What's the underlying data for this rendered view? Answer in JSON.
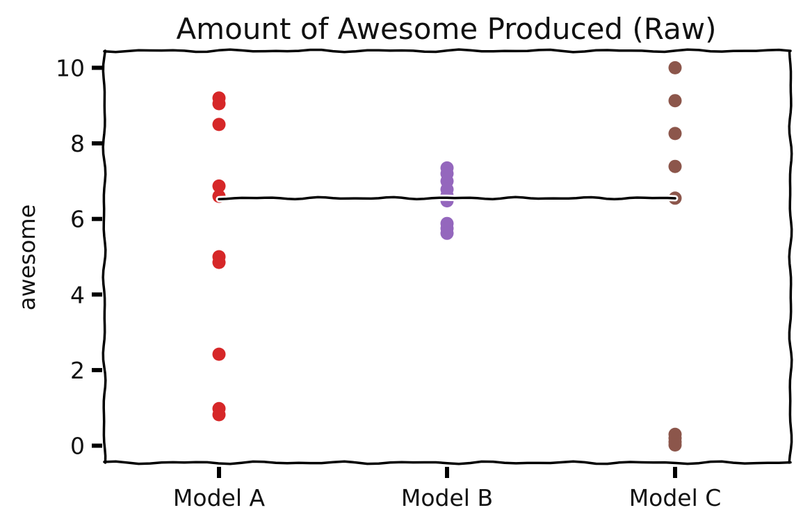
{
  "chart_data": {
    "type": "scatter",
    "title": "Amount of Awesome Produced (Raw)",
    "xlabel": "",
    "ylabel": "awesome",
    "categories": [
      "Model A",
      "Model B",
      "Model C"
    ],
    "ylim": [
      -0.45,
      10.45
    ],
    "yticks": [
      0,
      2,
      4,
      6,
      8,
      10
    ],
    "grid": false,
    "series": [
      {
        "category": "Model A",
        "color": "#d62728",
        "values": [
          9.2,
          9.05,
          8.5,
          6.87,
          6.6,
          5.0,
          4.85,
          2.42,
          0.98,
          0.82
        ]
      },
      {
        "category": "Model B",
        "color": "#9467bd",
        "values": [
          7.35,
          7.2,
          7.0,
          6.78,
          6.62,
          6.48,
          5.88,
          5.75,
          5.62
        ]
      },
      {
        "category": "Model C",
        "color": "#8c564b",
        "values": [
          10.0,
          9.13,
          8.26,
          7.39,
          6.55,
          0.3,
          0.2,
          0.1,
          0.02
        ]
      }
    ],
    "mean_line": {
      "value": 6.55,
      "color": "#000000"
    }
  }
}
